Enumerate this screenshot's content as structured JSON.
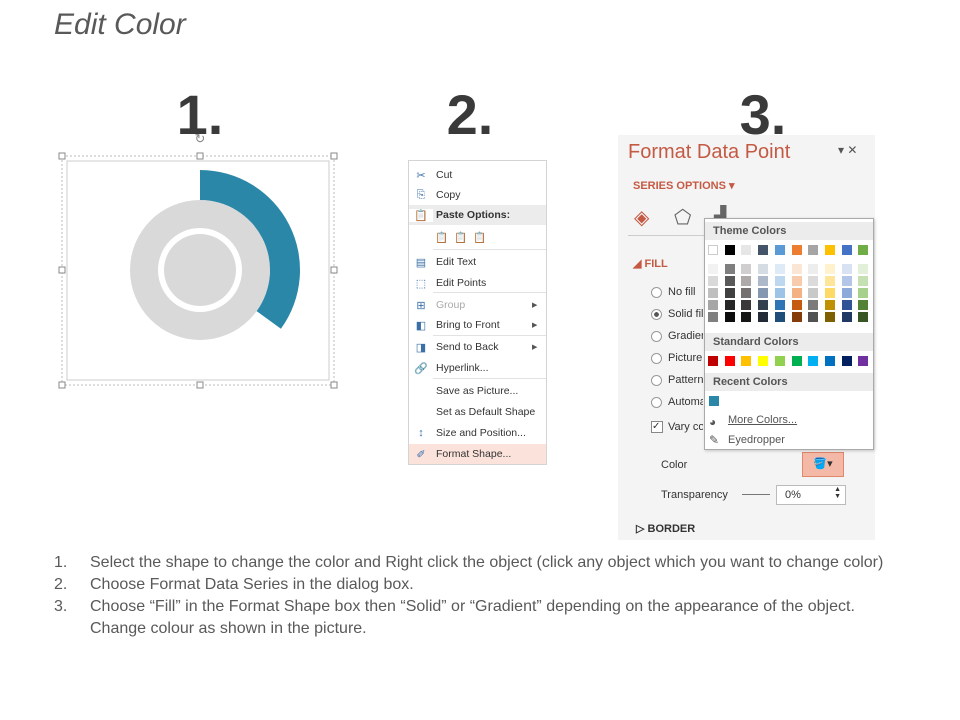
{
  "title": "Edit Color",
  "steps_numbers": [
    "1.",
    "2.",
    "3."
  ],
  "donut": {
    "ring_color": "#d9d9d9",
    "accent_color": "#2b87a8",
    "accent_fraction": 0.35
  },
  "context_menu": {
    "items": [
      {
        "label": "Cut",
        "icon": "scissors-icon"
      },
      {
        "label": "Copy",
        "icon": "copy-icon"
      },
      {
        "label": "Paste Options:",
        "icon": "paste-icon",
        "header": true
      },
      {
        "label": "Edit Text",
        "icon": "edit-text-icon"
      },
      {
        "label": "Edit Points",
        "icon": "edit-points-icon"
      },
      {
        "label": "Group",
        "icon": "group-icon",
        "disabled": true,
        "submenu": true
      },
      {
        "label": "Bring to Front",
        "icon": "bring-front-icon",
        "submenu": true
      },
      {
        "label": "Send to Back",
        "icon": "send-back-icon",
        "submenu": true
      },
      {
        "label": "Hyperlink...",
        "icon": "hyperlink-icon"
      },
      {
        "label": "Save as Picture...",
        "icon": ""
      },
      {
        "label": "Set as Default Shape",
        "icon": ""
      },
      {
        "label": "Size and Position...",
        "icon": "size-position-icon"
      },
      {
        "label": "Format Shape...",
        "icon": "format-shape-icon",
        "highlighted": true
      }
    ]
  },
  "format_pane": {
    "title": "Format Data Point",
    "series_options": "SERIES OPTIONS",
    "fill_header": "FILL",
    "fill_options": [
      "No fill",
      "Solid fill",
      "Gradient fill",
      "Picture or texture fill",
      "Pattern fill",
      "Automatic"
    ],
    "selected_fill": "Solid fill",
    "vary_colors": "Vary colors by point",
    "color_label": "Color",
    "transparency_label": "Transparency",
    "transparency_value": "0%",
    "border_header": "BORDER",
    "accent_color": "#c55a44"
  },
  "palette": {
    "theme_label": "Theme Colors",
    "theme_colors": [
      "#ffffff",
      "#000000",
      "#e7e6e6",
      "#44546a",
      "#5b9bd5",
      "#ed7d31",
      "#a5a5a5",
      "#ffc000",
      "#4472c4",
      "#70ad47"
    ],
    "theme_shades": [
      [
        "#f2f2f2",
        "#d9d9d9",
        "#bfbfbf",
        "#a6a6a6",
        "#808080"
      ],
      [
        "#7f7f7f",
        "#595959",
        "#404040",
        "#262626",
        "#0d0d0d"
      ],
      [
        "#d0cece",
        "#aeaaaa",
        "#757171",
        "#3a3838",
        "#161616"
      ],
      [
        "#d6dce4",
        "#adb9ca",
        "#8496b0",
        "#333f4f",
        "#222a35"
      ],
      [
        "#deebf6",
        "#bdd7ee",
        "#9dc3e6",
        "#2e75b5",
        "#1f4e79"
      ],
      [
        "#fbe5d5",
        "#f7cbac",
        "#f4b183",
        "#c55a11",
        "#843c0b"
      ],
      [
        "#ededed",
        "#dbdbdb",
        "#c9c9c9",
        "#7b7b7b",
        "#525252"
      ],
      [
        "#fff2cc",
        "#fee599",
        "#ffd965",
        "#bf9000",
        "#7f6000"
      ],
      [
        "#d9e2f3",
        "#b4c6e7",
        "#8eaadb",
        "#2f5496",
        "#1f3864"
      ],
      [
        "#e2efd9",
        "#c5e0b3",
        "#a8d08d",
        "#538135",
        "#375623"
      ]
    ],
    "standard_label": "Standard Colors",
    "standard_colors": [
      "#c00000",
      "#ff0000",
      "#ffc000",
      "#ffff00",
      "#92d050",
      "#00b050",
      "#00b0f0",
      "#0070c0",
      "#002060",
      "#7030a0"
    ],
    "recent_label": "Recent Colors",
    "recent_colors": [
      "#2b87a8"
    ],
    "more_colors": "More Colors...",
    "eyedropper": "Eyedropper"
  },
  "instructions": [
    {
      "n": "1.",
      "text": "Select the shape to change the color and Right click the object (click any object which you want to change color)"
    },
    {
      "n": "2.",
      "text": "Choose Format Data Series in the dialog box."
    },
    {
      "n": "3.",
      "text": "Choose “Fill” in the Format Shape box then “Solid” or “Gradient” depending on the appearance of the object. Change colour as shown in the picture."
    }
  ]
}
